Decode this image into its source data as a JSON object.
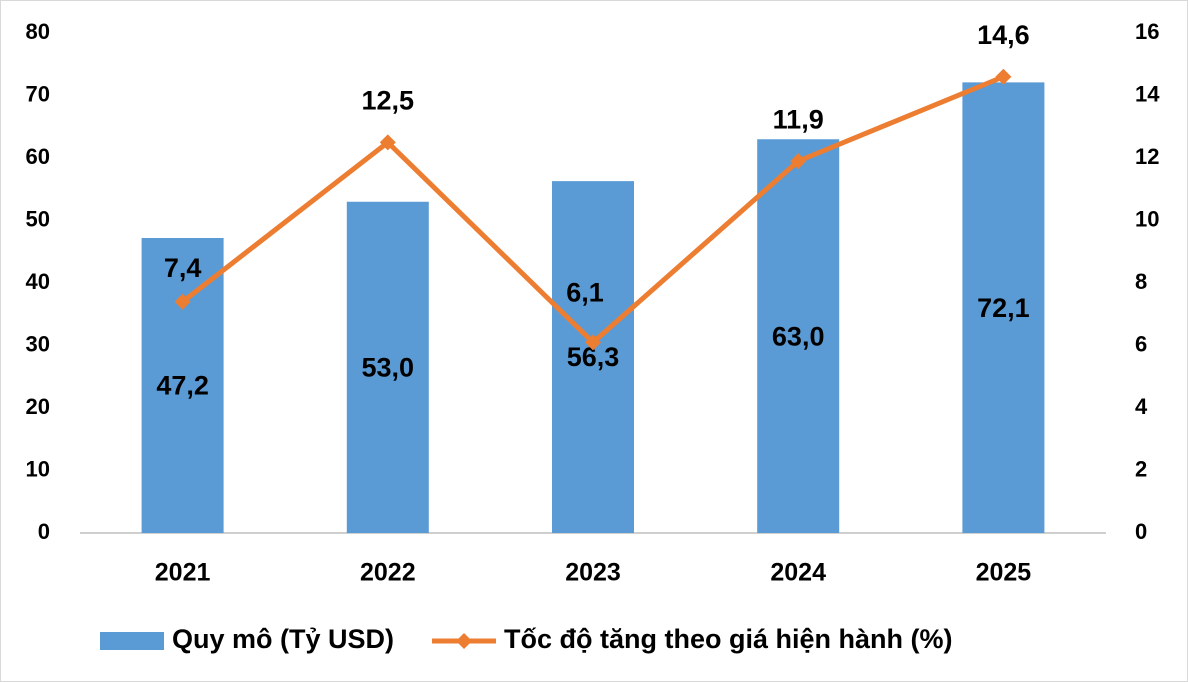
{
  "chart_data": {
    "type": "bar",
    "categories": [
      "2021",
      "2022",
      "2023",
      "2024",
      "2025"
    ],
    "series": [
      {
        "name": "Quy mô (Tỷ USD)",
        "type": "bar",
        "color": "#5b9bd5",
        "values": [
          47.2,
          53.0,
          56.3,
          63.0,
          72.1
        ],
        "value_labels": [
          "47,2",
          "53,0",
          "56,3",
          "63,0",
          "72,1"
        ]
      },
      {
        "name": "Tốc độ tăng theo giá hiện hành (%)",
        "type": "line",
        "axis": "y2",
        "color": "#ed7d31",
        "values": [
          7.4,
          12.5,
          6.1,
          11.9,
          14.6
        ],
        "value_labels": [
          "7,4",
          "12,5",
          "6,1",
          "11,9",
          "14,6"
        ]
      }
    ],
    "ylim": [
      0,
      80
    ],
    "yticks": [
      0,
      10,
      20,
      30,
      40,
      50,
      60,
      70,
      80
    ],
    "y2lim": [
      0,
      16
    ],
    "y2ticks": [
      0,
      2,
      4,
      6,
      8,
      10,
      12,
      14,
      16
    ],
    "grid": false,
    "legend": "bottom"
  }
}
